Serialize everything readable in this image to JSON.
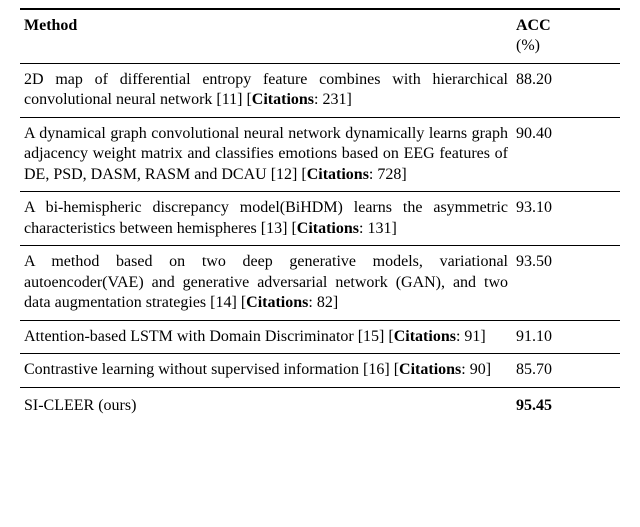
{
  "table": {
    "type": "table",
    "header": {
      "method_label": "Method",
      "acc_label": "ACC",
      "acc_unit": "(%)"
    },
    "rows": [
      {
        "text_pre": "2D map of differential entropy feature combines with hierarchical convolutional neural network [11] [",
        "cit_label": "Citations",
        "text_post": ": 231]",
        "acc": "88.20"
      },
      {
        "text_pre": "A dynamical graph convolutional neural network dynamically learns graph adjacency weight matrix and classifies emotions based on EEG features of DE, PSD, DASM, RASM and DCAU [12] [",
        "cit_label": "Citations",
        "text_post": ": 728]",
        "acc": "90.40"
      },
      {
        "text_pre": "A bi-hemispheric discrepancy model(BiHDM) learns the asymmetric characteristics between hemispheres [13] [",
        "cit_label": "Citations",
        "text_post": ": 131]",
        "acc": "93.10"
      },
      {
        "text_pre": "A method based on two deep generative models, variational autoencoder(VAE) and generative adversarial network (GAN), and two data augmentation strategies [14] [",
        "cit_label": "Citations",
        "text_post": ": 82]",
        "acc": "93.50"
      },
      {
        "text_pre": "Attention-based LSTM with Domain Discriminator [15] [",
        "cit_label": "Citations",
        "text_post": ": 91]",
        "acc": "91.10"
      },
      {
        "text_pre": "Contrastive learning without supervised information [16] [",
        "cit_label": "Citations",
        "text_post": ": 90]",
        "acc": "85.70"
      }
    ],
    "final_row": {
      "method": "SI-CLEER (ours)",
      "acc": "95.45"
    },
    "colors": {
      "background": "#ffffff",
      "text": "#000000",
      "rule": "#000000"
    },
    "font": {
      "family": "Times New Roman",
      "body_size_pt": 12,
      "header_weight": "bold"
    },
    "column_widths_pct": [
      82,
      18
    ]
  }
}
